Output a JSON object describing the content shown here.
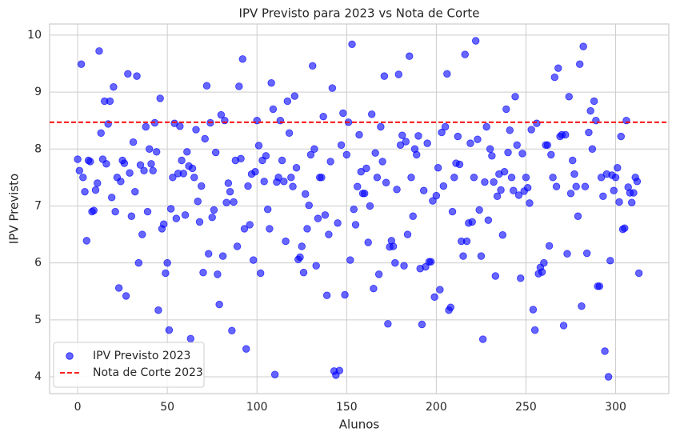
{
  "chart_data": {
    "type": "scatter",
    "title": "IPV Previsto para 2023 vs Nota de Corte",
    "x_label": "Alunos",
    "y_label": "IPV Previsto",
    "x": [
      0,
      1,
      2,
      3,
      4,
      5,
      6,
      7,
      8,
      9,
      10,
      11,
      12,
      13,
      14,
      15,
      16,
      17,
      18,
      19,
      20,
      21,
      22,
      23,
      24,
      25,
      26,
      27,
      28,
      29,
      30,
      31,
      32,
      33,
      34,
      35,
      36,
      37,
      38,
      39,
      40,
      41,
      42,
      43,
      44,
      45,
      46,
      47,
      48,
      49,
      50,
      51,
      52,
      53,
      54,
      55,
      56,
      57,
      58,
      59,
      60,
      61,
      62,
      63,
      64,
      65,
      66,
      67,
      68,
      69,
      70,
      71,
      72,
      73,
      74,
      75,
      76,
      77,
      78,
      79,
      80,
      81,
      82,
      83,
      84,
      85,
      86,
      87,
      88,
      89,
      90,
      91,
      92,
      93,
      94,
      95,
      96,
      97,
      98,
      99,
      100,
      101,
      102,
      103,
      104,
      105,
      106,
      107,
      108,
      109,
      110,
      111,
      112,
      113,
      114,
      115,
      116,
      117,
      118,
      119,
      120,
      121,
      122,
      123,
      124,
      125,
      126,
      127,
      128,
      129,
      130,
      131,
      132,
      133,
      134,
      135,
      136,
      137,
      138,
      139,
      140,
      141,
      142,
      143,
      144,
      145,
      146,
      147,
      148,
      149,
      150,
      151,
      152,
      153,
      154,
      155,
      156,
      157,
      158,
      159,
      160,
      161,
      162,
      163,
      164,
      165,
      166,
      167,
      168,
      169,
      170,
      171,
      172,
      173,
      174,
      175,
      176,
      177,
      178,
      179,
      180,
      181,
      182,
      183,
      184,
      185,
      186,
      187,
      188,
      189,
      190,
      191,
      192,
      193,
      194,
      195,
      196,
      197,
      198,
      199,
      200,
      201,
      202,
      203,
      204,
      205,
      206,
      207,
      208,
      209,
      210,
      211,
      212,
      213,
      214,
      215,
      216,
      217,
      218,
      219,
      220,
      221,
      222,
      223,
      224,
      225,
      226,
      227,
      228,
      229,
      230,
      231,
      232,
      233,
      234,
      235,
      236,
      237,
      238,
      239,
      240,
      241,
      242,
      243,
      244,
      245,
      246,
      247,
      248,
      249,
      250,
      251,
      252,
      253,
      254,
      255,
      256,
      257,
      258,
      259,
      260,
      261,
      262,
      263,
      264,
      265,
      266,
      267,
      268,
      269,
      270,
      271,
      272,
      273,
      274,
      275,
      276,
      277,
      278,
      279,
      280,
      281,
      282,
      283,
      284,
      285,
      286,
      287,
      288,
      289,
      290,
      291,
      292,
      293,
      294,
      295,
      296,
      297,
      298,
      299,
      300,
      301,
      302,
      303,
      304,
      305,
      306,
      307,
      308,
      309,
      310,
      311,
      312,
      313
    ],
    "series": [
      {
        "name": "IPV Previsto 2023",
        "color": "#0000ff",
        "values": [
          7.82,
          7.62,
          9.49,
          7.5,
          7.25,
          6.39,
          7.8,
          7.78,
          6.9,
          6.92,
          7.28,
          7.4,
          9.72,
          8.28,
          7.82,
          8.84,
          7.74,
          8.44,
          8.84,
          7.15,
          9.09,
          6.9,
          7.5,
          5.56,
          7.43,
          7.8,
          7.75,
          5.42,
          9.32,
          7.58,
          6.82,
          8.12,
          7.25,
          9.28,
          6.0,
          7.72,
          6.5,
          7.62,
          8.39,
          6.9,
          8.0,
          7.74,
          7.62,
          8.46,
          7.95,
          5.17,
          8.89,
          6.6,
          6.68,
          5.82,
          6.0,
          4.82,
          6.95,
          7.5,
          8.45,
          6.78,
          7.57,
          8.4,
          7.8,
          7.57,
          6.84,
          7.95,
          7.7,
          4.67,
          7.66,
          7.5,
          8.34,
          7.08,
          6.72,
          7.35,
          5.83,
          8.18,
          9.11,
          6.16,
          8.46,
          6.8,
          6.93,
          7.94,
          5.8,
          5.27,
          8.6,
          6.12,
          8.5,
          7.06,
          7.4,
          7.25,
          4.81,
          7.07,
          7.8,
          6.29,
          9.1,
          7.83,
          9.58,
          6.6,
          4.49,
          7.35,
          6.67,
          7.56,
          6.05,
          7.6,
          8.5,
          8.06,
          5.82,
          7.8,
          7.43,
          7.88,
          6.94,
          6.6,
          9.16,
          8.7,
          4.04,
          7.42,
          7.5,
          8.5,
          7.8,
          7.43,
          6.38,
          8.84,
          8.28,
          7.5,
          7.34,
          8.93,
          7.67,
          6.06,
          6.1,
          6.29,
          5.83,
          7.21,
          6.6,
          7.01,
          7.9,
          9.46,
          8.0,
          5.95,
          6.78,
          7.5,
          7.5,
          8.57,
          6.84,
          5.43,
          6.5,
          7.78,
          9.07,
          4.1,
          4.03,
          6.7,
          4.11,
          8.07,
          8.63,
          5.44,
          7.9,
          8.47,
          6.05,
          9.84,
          6.94,
          6.67,
          7.34,
          8.25,
          7.6,
          7.22,
          7.22,
          7.66,
          6.36,
          7.0,
          8.61,
          5.55,
          7.93,
          7.5,
          5.8,
          8.39,
          7.78,
          9.28,
          7.41,
          4.93,
          6.28,
          6.39,
          6.29,
          6.0,
          7.29,
          9.31,
          8.07,
          8.24,
          5.95,
          8.13,
          6.5,
          9.63,
          7.5,
          6.82,
          8.0,
          7.9,
          8.23,
          5.9,
          4.92,
          7.27,
          5.93,
          8.1,
          6.02,
          6.02,
          7.09,
          5.4,
          7.18,
          7.67,
          5.53,
          8.29,
          7.35,
          8.39,
          9.32,
          5.17,
          5.22,
          6.9,
          7.5,
          7.75,
          8.22,
          7.73,
          6.38,
          6.12,
          9.66,
          6.38,
          6.7,
          8.1,
          6.72,
          7.5,
          9.9,
          8.17,
          6.93,
          6.12,
          4.66,
          7.42,
          8.39,
          6.75,
          8.0,
          7.88,
          7.42,
          5.77,
          7.17,
          7.56,
          7.28,
          6.49,
          7.6,
          8.7,
          7.94,
          8.33,
          7.5,
          7.27,
          8.92,
          8.07,
          7.19,
          5.73,
          7.92,
          7.26,
          7.5,
          7.32,
          7.05,
          8.34,
          5.18,
          4.82,
          8.45,
          5.81,
          5.92,
          5.84,
          6.0,
          8.07,
          8.07,
          6.3,
          7.9,
          7.5,
          9.26,
          7.34,
          9.42,
          8.22,
          8.25,
          4.9,
          8.25,
          6.16,
          8.92,
          7.22,
          7.8,
          7.56,
          7.34,
          6.82,
          9.49,
          5.24,
          9.8,
          7.34,
          6.17,
          8.29,
          8.67,
          8.0,
          8.84,
          8.5,
          5.59,
          5.59,
          7.5,
          7.17,
          4.45,
          7.56,
          4.0,
          6.04,
          7.54,
          7.27,
          7.5,
          7.67,
          7.07,
          8.22,
          6.59,
          6.61,
          8.5,
          7.33,
          7.23,
          7.06,
          7.23,
          7.5,
          7.43,
          5.82
        ]
      }
    ],
    "hlines": [
      {
        "name": "Nota de Corte 2023",
        "color": "#ff0000",
        "value": 8.47
      }
    ],
    "xlim": [
      -15.65,
      329.65
    ],
    "xticks": [
      0,
      50,
      100,
      150,
      200,
      250,
      300
    ],
    "ylim": [
      3.705,
      10.195
    ],
    "yticks": [
      4,
      5,
      6,
      7,
      8,
      9,
      10
    ],
    "grid": true,
    "legend": "lower left"
  }
}
